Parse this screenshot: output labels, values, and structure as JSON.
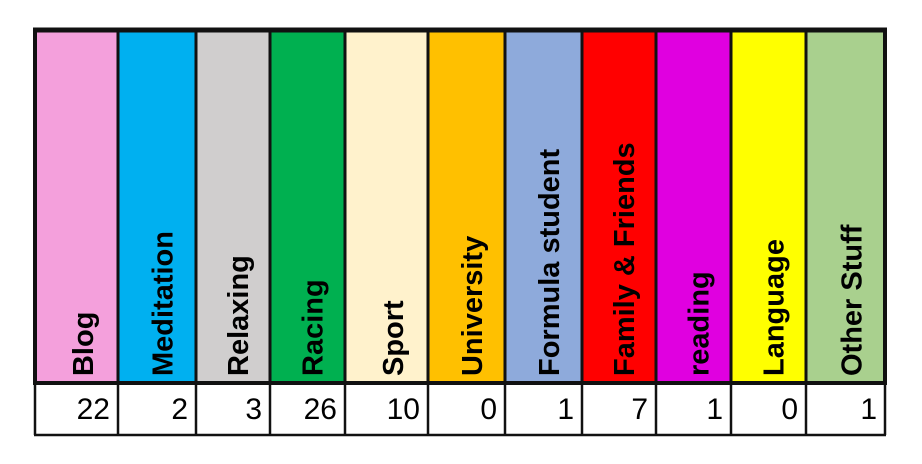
{
  "table": {
    "columns": [
      {
        "label": "Blog",
        "color": "#f4a0dc",
        "count": 22
      },
      {
        "label": "Meditation",
        "color": "#00b0f0",
        "count": 2
      },
      {
        "label": "Relaxing",
        "color": "#d0cece",
        "count": 3
      },
      {
        "label": "Racing",
        "color": "#00b050",
        "count": 26
      },
      {
        "label": "Sport",
        "color": "#fff2cc",
        "count": 10
      },
      {
        "label": "University",
        "color": "#ffc000",
        "count": 0
      },
      {
        "label": "Formula student",
        "color": "#8eaadb",
        "count": 1
      },
      {
        "label": "Family & Friends",
        "color": "#ff0000",
        "count": 7
      },
      {
        "label": "reading",
        "color": "#e000e0",
        "count": 1
      },
      {
        "label": "Language",
        "color": "#ffff00",
        "count": 0
      },
      {
        "label": "Other Stuff",
        "color": "#a9d08e",
        "count": 1
      }
    ]
  }
}
